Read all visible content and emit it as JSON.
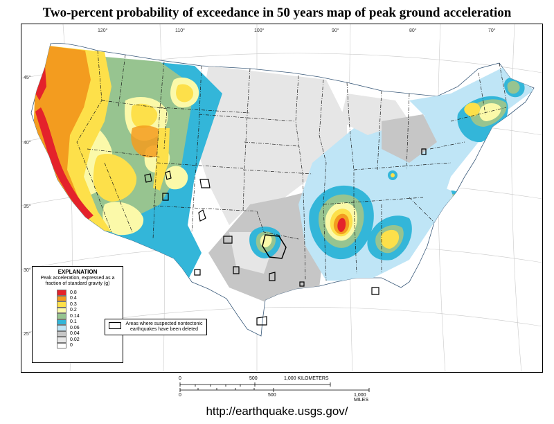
{
  "title": "Two-percent probability of exceedance in 50 years map of peak ground acceleration",
  "longitude_labels": [
    "120°",
    "110°",
    "100°",
    "90°",
    "80°",
    "70°"
  ],
  "latitude_labels": [
    "45°",
    "40°",
    "35°",
    "30°",
    "25°"
  ],
  "legend": {
    "heading": "EXPLANATION",
    "description": "Peak acceleration, expressed as a fraction of standard gravity (g)",
    "items": [
      {
        "label": "0.8",
        "color": "#e4222b"
      },
      {
        "label": "0.4",
        "color": "#f39c1f"
      },
      {
        "label": "0.3",
        "color": "#fde04a"
      },
      {
        "label": "0.2",
        "color": "#fbf9a9"
      },
      {
        "label": "0.14",
        "color": "#97c490"
      },
      {
        "label": "0.1",
        "color": "#33b6d9"
      },
      {
        "label": "0.06",
        "color": "#bfe5f6"
      },
      {
        "label": "0.04",
        "color": "#c6c6c6"
      },
      {
        "label": "0.02",
        "color": "#e6e6e6"
      },
      {
        "label": "0",
        "color": "#ffffff"
      }
    ]
  },
  "nontectonic_note": "Areas where suspected nontectonic earthquakes have been deleted",
  "scale_bar": {
    "km_labels": [
      "0",
      "500",
      "1,000 KILOMETERS"
    ],
    "mile_labels": [
      "0",
      "500",
      "1,000 MILES"
    ]
  },
  "url": "http://earthquake.usgs.gov/"
}
